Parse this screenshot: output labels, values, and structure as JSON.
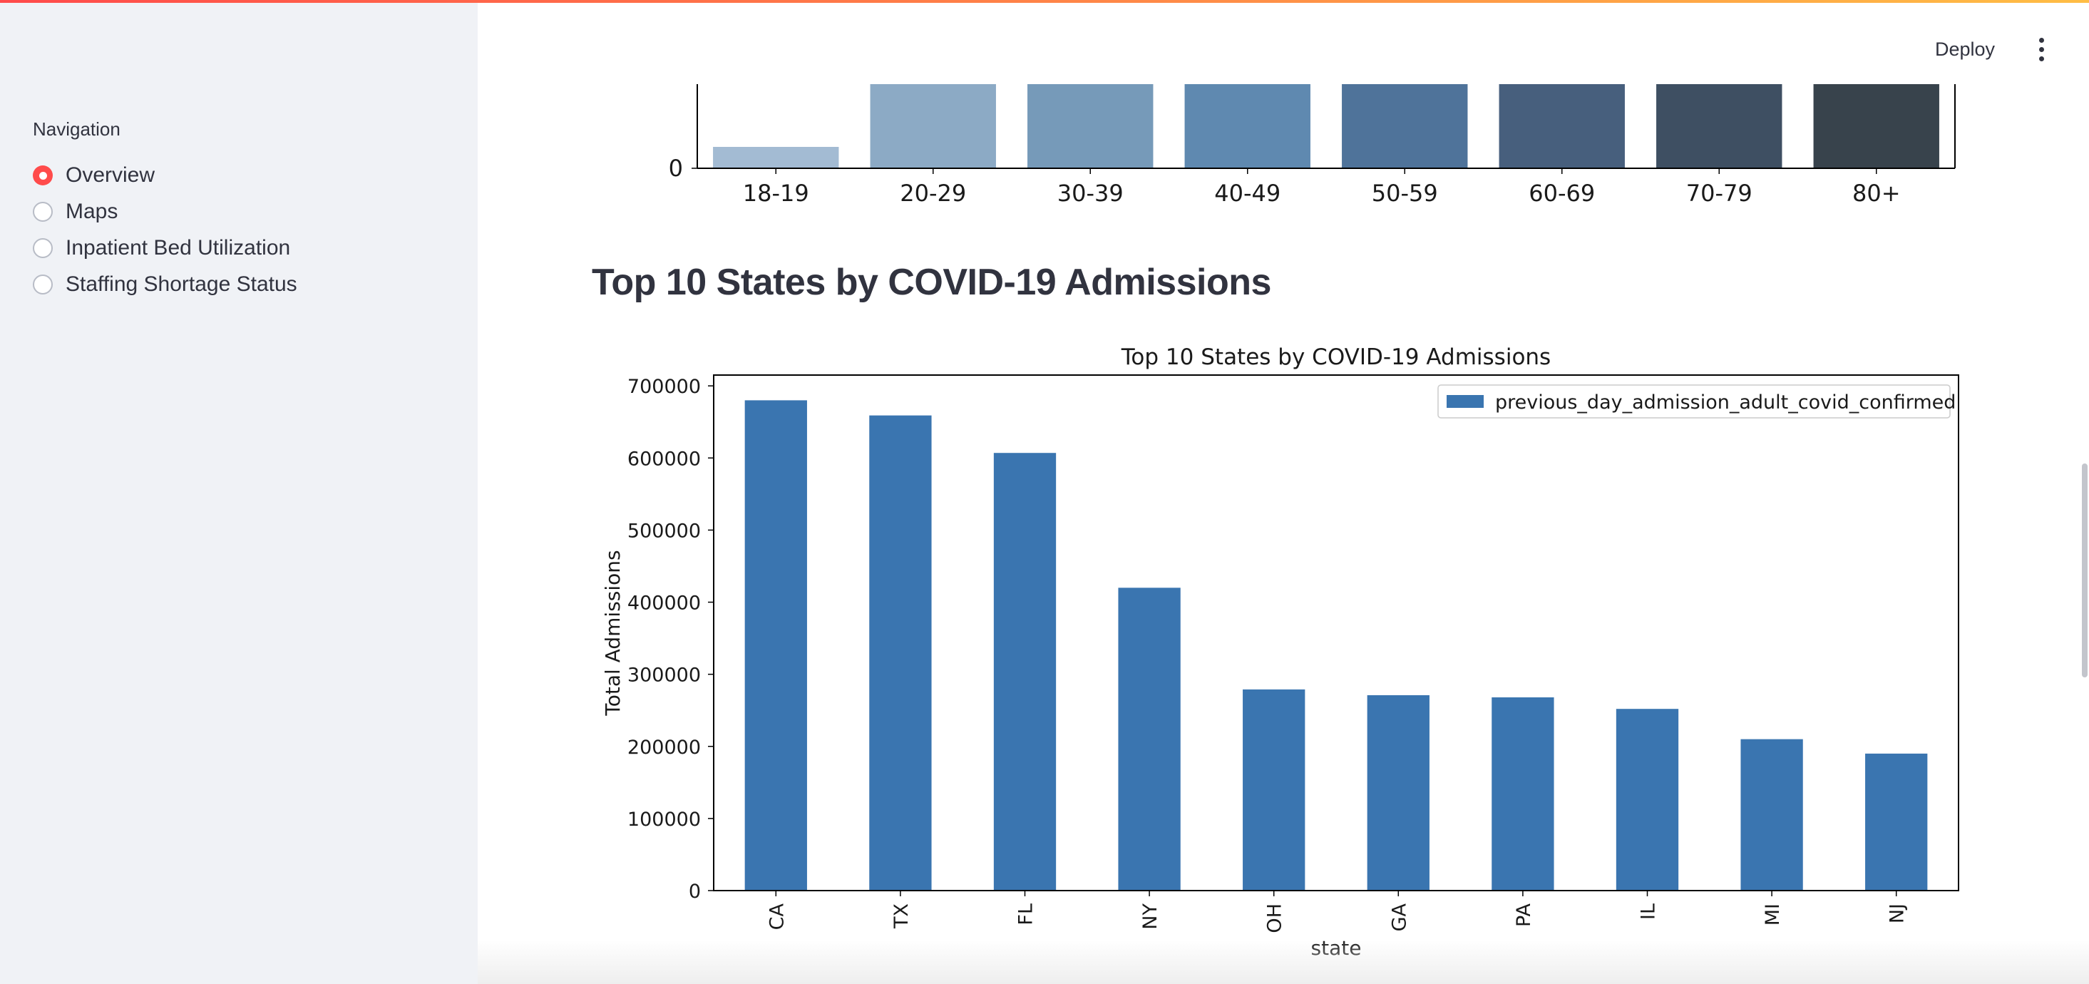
{
  "header": {
    "deploy_label": "Deploy",
    "menu_icon": "kebab-menu-icon"
  },
  "sidebar": {
    "heading": "Navigation",
    "items": [
      {
        "label": "Overview",
        "selected": true
      },
      {
        "label": "Maps",
        "selected": false
      },
      {
        "label": "Inpatient Bed Utilization",
        "selected": false
      },
      {
        "label": "Staffing Shortage Status",
        "selected": false
      }
    ]
  },
  "colors": {
    "accent": "#ff4b4b",
    "bar": "#3a75b0"
  },
  "main": {
    "section_title": "Top 10 States by COVID-19 Admissions"
  },
  "chart_data": [
    {
      "type": "bar",
      "categories": [
        "18-19",
        "20-29",
        "30-39",
        "40-49",
        "50-59",
        "60-69",
        "70-79",
        "80+"
      ],
      "colors": [
        "#a3bbd3",
        "#8caac5",
        "#769ab9",
        "#5f89b0",
        "#4f739a",
        "#475f7d",
        "#3e4f62",
        "#38434c"
      ],
      "y_tick_labels": [
        "0"
      ],
      "note_visible": "partially cropped chart; bars extend above visible region",
      "grid": false
    },
    {
      "type": "bar",
      "title": "Top 10 States by COVID-19 Admissions",
      "xlabel": "state",
      "ylabel": "Total Admissions",
      "categories": [
        "CA",
        "TX",
        "FL",
        "NY",
        "OH",
        "GA",
        "PA",
        "IL",
        "MI",
        "NJ"
      ],
      "series": [
        {
          "name": "previous_day_admission_adult_covid_confirmed",
          "values": [
            680000,
            659000,
            607000,
            420000,
            279000,
            271000,
            268000,
            252000,
            210000,
            190000
          ]
        }
      ],
      "ylim": [
        0,
        715000
      ],
      "yticks": [
        0,
        100000,
        200000,
        300000,
        400000,
        500000,
        600000,
        700000
      ],
      "legend": "top-right",
      "grid": false
    }
  ]
}
